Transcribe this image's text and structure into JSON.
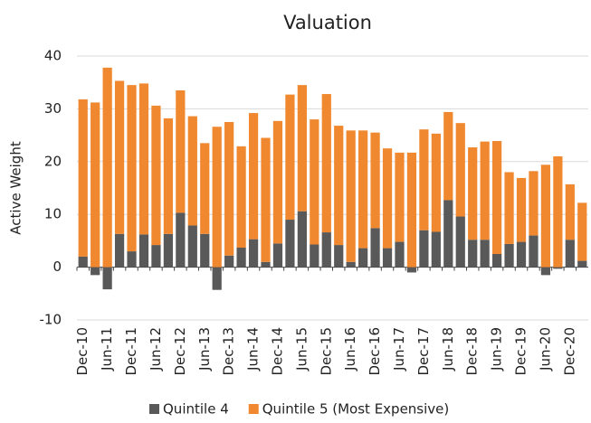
{
  "chart_data": {
    "type": "stacked_bar",
    "title": "Valuation",
    "y_label": "Active Weight",
    "categories": [
      "Dec-10",
      null,
      "Jun-11",
      null,
      "Dec-11",
      null,
      "Jun-12",
      null,
      "Dec-12",
      null,
      "Jun-13",
      null,
      "Dec-13",
      null,
      "Jun-14",
      null,
      "Dec-14",
      null,
      "Jun-15",
      null,
      "Dec-15",
      null,
      "Jun-16",
      null,
      "Dec-16",
      null,
      "Jun-17",
      null,
      "Dec-17",
      null,
      "Jun-18",
      null,
      "Dec-18",
      null,
      "Jun-19",
      null,
      "Dec-19",
      null,
      "Jun-20",
      null,
      "Dec-20",
      null
    ],
    "series": [
      {
        "name": "Quintile 4",
        "color": "#595959",
        "values": [
          2.0,
          -1.5,
          -4.2,
          6.3,
          3.0,
          6.2,
          4.2,
          6.3,
          10.3,
          7.9,
          6.3,
          -4.3,
          2.2,
          3.7,
          5.3,
          1.0,
          4.5,
          9.0,
          10.6,
          4.3,
          6.6,
          4.2,
          1.0,
          3.6,
          7.4,
          3.6,
          4.8,
          -1.0,
          7.0,
          6.7,
          12.7,
          9.6,
          5.2,
          5.2,
          2.5,
          4.4,
          4.8,
          6.0,
          -1.5,
          -0.3,
          5.2,
          1.2
        ]
      },
      {
        "name": "Quintile 5 (Most Expensive)",
        "color": "#f0882f",
        "values": [
          29.8,
          31.2,
          37.8,
          29.0,
          31.5,
          28.6,
          26.4,
          21.9,
          23.2,
          20.7,
          17.2,
          26.6,
          25.3,
          19.2,
          23.9,
          23.5,
          23.2,
          23.7,
          23.9,
          23.7,
          26.2,
          22.6,
          24.9,
          22.3,
          18.1,
          18.9,
          16.9,
          21.7,
          19.1,
          18.6,
          16.7,
          17.7,
          17.5,
          18.6,
          21.4,
          13.6,
          12.1,
          12.2,
          19.4,
          21.0,
          10.5,
          11.0
        ]
      }
    ],
    "ylim": [
      -10,
      40
    ],
    "yticks": [
      -10,
      0,
      10,
      20,
      30,
      40
    ],
    "grid": true,
    "legend": "bottom"
  }
}
